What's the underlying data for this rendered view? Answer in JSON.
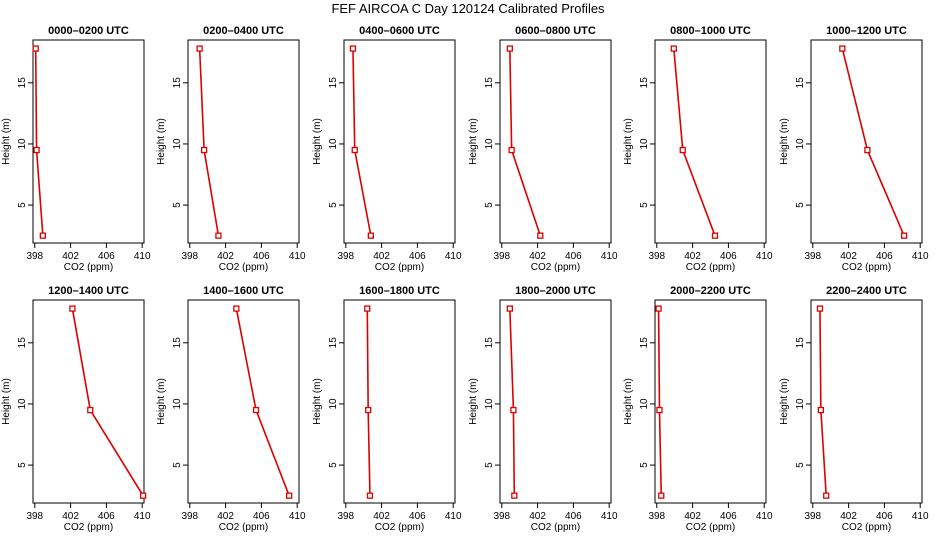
{
  "title": "FEF AIRCOA C  Day 120124  Calibrated Profiles",
  "colors": {
    "series": "#dd0000",
    "axis": "#000000",
    "background": "#ffffff"
  },
  "chart_data": [
    {
      "type": "line",
      "title": "0000–0200 UTC",
      "xlabel": "CO2 (ppm)",
      "ylabel": "Height (m)",
      "x_ticks": [
        "398",
        "402",
        "406",
        "410"
      ],
      "y_ticks": [
        "5",
        "10",
        "15"
      ],
      "xlim": [
        397.8,
        410.2
      ],
      "ylim": [
        1.9,
        18.5
      ],
      "points": [
        {
          "x": 398.1,
          "y": 17.8
        },
        {
          "x": 398.2,
          "y": 9.5
        },
        {
          "x": 398.9,
          "y": 2.5
        }
      ]
    },
    {
      "type": "line",
      "title": "0200–0400 UTC",
      "xlabel": "CO2 (ppm)",
      "ylabel": "Height (m)",
      "x_ticks": [
        "398",
        "402",
        "406",
        "410"
      ],
      "y_ticks": [
        "5",
        "10",
        "15"
      ],
      "xlim": [
        397.8,
        410.2
      ],
      "ylim": [
        1.9,
        18.5
      ],
      "points": [
        {
          "x": 399.1,
          "y": 17.8
        },
        {
          "x": 399.6,
          "y": 9.5
        },
        {
          "x": 401.2,
          "y": 2.5
        }
      ]
    },
    {
      "type": "line",
      "title": "0400–0600 UTC",
      "xlabel": "CO2 (ppm)",
      "ylabel": "Height (m)",
      "x_ticks": [
        "398",
        "402",
        "406",
        "410"
      ],
      "y_ticks": [
        "5",
        "10",
        "15"
      ],
      "xlim": [
        397.8,
        410.2
      ],
      "ylim": [
        1.9,
        18.5
      ],
      "points": [
        {
          "x": 398.8,
          "y": 17.8
        },
        {
          "x": 399.0,
          "y": 9.5
        },
        {
          "x": 400.8,
          "y": 2.5
        }
      ]
    },
    {
      "type": "line",
      "title": "0600–0800 UTC",
      "xlabel": "CO2 (ppm)",
      "ylabel": "Height (m)",
      "x_ticks": [
        "398",
        "402",
        "406",
        "410"
      ],
      "y_ticks": [
        "5",
        "10",
        "15"
      ],
      "xlim": [
        397.8,
        410.2
      ],
      "ylim": [
        1.9,
        18.5
      ],
      "points": [
        {
          "x": 398.9,
          "y": 17.8
        },
        {
          "x": 399.1,
          "y": 9.5
        },
        {
          "x": 402.3,
          "y": 2.5
        }
      ]
    },
    {
      "type": "line",
      "title": "0800–1000 UTC",
      "xlabel": "CO2 (ppm)",
      "ylabel": "Height (m)",
      "x_ticks": [
        "398",
        "402",
        "406",
        "410"
      ],
      "y_ticks": [
        "5",
        "10",
        "15"
      ],
      "xlim": [
        397.8,
        410.2
      ],
      "ylim": [
        1.9,
        18.5
      ],
      "points": [
        {
          "x": 399.9,
          "y": 17.8
        },
        {
          "x": 400.9,
          "y": 9.5
        },
        {
          "x": 404.5,
          "y": 2.5
        }
      ]
    },
    {
      "type": "line",
      "title": "1000–1200 UTC",
      "xlabel": "CO2 (ppm)",
      "ylabel": "Height (m)",
      "x_ticks": [
        "398",
        "402",
        "406",
        "410"
      ],
      "y_ticks": [
        "5",
        "10",
        "15"
      ],
      "xlim": [
        397.8,
        410.2
      ],
      "ylim": [
        1.9,
        18.5
      ],
      "points": [
        {
          "x": 401.3,
          "y": 17.8
        },
        {
          "x": 404.1,
          "y": 9.5
        },
        {
          "x": 408.2,
          "y": 2.5
        }
      ]
    },
    {
      "type": "line",
      "title": "1200–1400 UTC",
      "xlabel": "CO2 (ppm)",
      "ylabel": "Height (m)",
      "x_ticks": [
        "398",
        "402",
        "406",
        "410"
      ],
      "y_ticks": [
        "5",
        "10",
        "15"
      ],
      "xlim": [
        397.8,
        410.2
      ],
      "ylim": [
        1.9,
        18.5
      ],
      "points": [
        {
          "x": 402.2,
          "y": 17.8
        },
        {
          "x": 404.2,
          "y": 9.5
        },
        {
          "x": 410.1,
          "y": 2.5
        }
      ]
    },
    {
      "type": "line",
      "title": "1400–1600 UTC",
      "xlabel": "CO2 (ppm)",
      "ylabel": "Height (m)",
      "x_ticks": [
        "398",
        "402",
        "406",
        "410"
      ],
      "y_ticks": [
        "5",
        "10",
        "15"
      ],
      "xlim": [
        397.8,
        410.2
      ],
      "ylim": [
        1.9,
        18.5
      ],
      "points": [
        {
          "x": 403.2,
          "y": 17.8
        },
        {
          "x": 405.4,
          "y": 9.5
        },
        {
          "x": 409.1,
          "y": 2.5
        }
      ]
    },
    {
      "type": "line",
      "title": "1600–1800 UTC",
      "xlabel": "CO2 (ppm)",
      "ylabel": "Height (m)",
      "x_ticks": [
        "398",
        "402",
        "406",
        "410"
      ],
      "y_ticks": [
        "5",
        "10",
        "15"
      ],
      "xlim": [
        397.8,
        410.2
      ],
      "ylim": [
        1.9,
        18.5
      ],
      "points": [
        {
          "x": 400.4,
          "y": 17.8
        },
        {
          "x": 400.5,
          "y": 9.5
        },
        {
          "x": 400.7,
          "y": 2.5
        }
      ]
    },
    {
      "type": "line",
      "title": "1800–2000 UTC",
      "xlabel": "CO2 (ppm)",
      "ylabel": "Height (m)",
      "x_ticks": [
        "398",
        "402",
        "406",
        "410"
      ],
      "y_ticks": [
        "5",
        "10",
        "15"
      ],
      "xlim": [
        397.8,
        410.2
      ],
      "ylim": [
        1.9,
        18.5
      ],
      "points": [
        {
          "x": 398.9,
          "y": 17.8
        },
        {
          "x": 399.3,
          "y": 9.5
        },
        {
          "x": 399.4,
          "y": 2.5
        }
      ]
    },
    {
      "type": "line",
      "title": "2000–2200 UTC",
      "xlabel": "CO2 (ppm)",
      "ylabel": "Height (m)",
      "x_ticks": [
        "398",
        "402",
        "406",
        "410"
      ],
      "y_ticks": [
        "5",
        "10",
        "15"
      ],
      "xlim": [
        397.8,
        410.2
      ],
      "ylim": [
        1.9,
        18.5
      ],
      "points": [
        {
          "x": 398.2,
          "y": 17.8
        },
        {
          "x": 398.3,
          "y": 9.5
        },
        {
          "x": 398.5,
          "y": 2.5
        }
      ]
    },
    {
      "type": "line",
      "title": "2200–2400 UTC",
      "xlabel": "CO2 (ppm)",
      "ylabel": "Height (m)",
      "x_ticks": [
        "398",
        "402",
        "406",
        "410"
      ],
      "y_ticks": [
        "5",
        "10",
        "15"
      ],
      "xlim": [
        397.8,
        410.2
      ],
      "ylim": [
        1.9,
        18.5
      ],
      "points": [
        {
          "x": 398.8,
          "y": 17.8
        },
        {
          "x": 398.9,
          "y": 9.5
        },
        {
          "x": 399.5,
          "y": 2.5
        }
      ]
    }
  ]
}
